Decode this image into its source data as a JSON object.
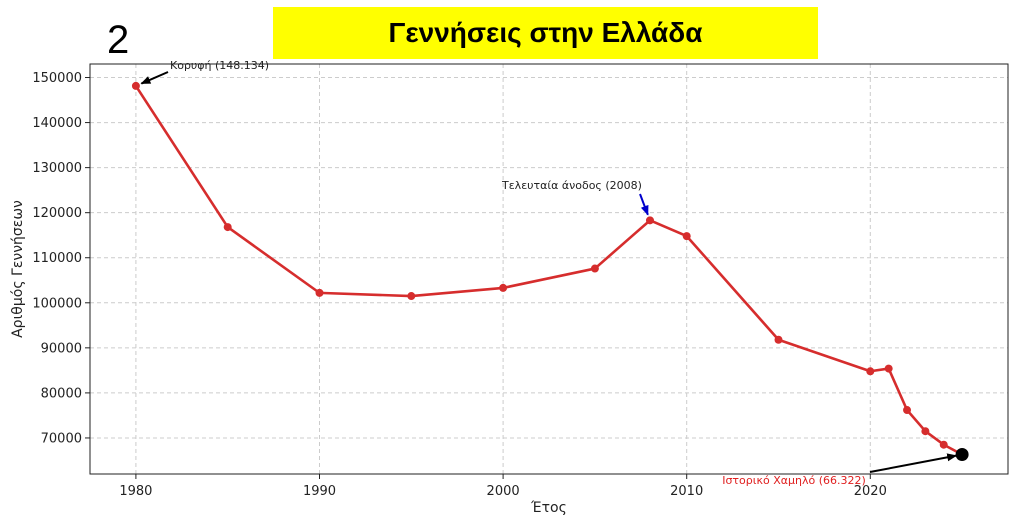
{
  "badge": "2",
  "chart_data": {
    "type": "line",
    "title": "Γεννήσεις στην Ελλάδα",
    "xlabel": "Έτος",
    "ylabel": "Αριθμός Γεννήσεων",
    "xlim": [
      1977.5,
      2027.5
    ],
    "ylim": [
      62000,
      153000
    ],
    "xticks": [
      1980,
      1990,
      2000,
      2010,
      2020
    ],
    "yticks": [
      70000,
      80000,
      90000,
      100000,
      110000,
      120000,
      130000,
      140000,
      150000
    ],
    "grid": true,
    "series": [
      {
        "color": "#d62d2d",
        "x": [
          1980,
          1985,
          1990,
          1995,
          2000,
          2005,
          2008,
          2010,
          2015,
          2020,
          2021,
          2022,
          2023,
          2024,
          2025
        ],
        "y": [
          148134,
          116800,
          102200,
          101500,
          103300,
          107600,
          118300,
          114800,
          91800,
          84800,
          85400,
          76200,
          71500,
          68500,
          66322
        ]
      }
    ],
    "annotations": [
      {
        "text": "Κορυφή (148.134)",
        "x": 1980,
        "y": 148134,
        "color": "#222222",
        "arrow_color": "#000000"
      },
      {
        "text": "Τελευταία άνοδος (2008)",
        "x": 2008,
        "y": 118300,
        "color": "#222222",
        "arrow_color": "#0000cc"
      },
      {
        "text": "Ιστορικό Χαμηλό (66.322)",
        "x": 2025,
        "y": 66322,
        "color": "#e02020",
        "arrow_color": "#000000"
      }
    ],
    "highlight_point": {
      "x": 2025,
      "y": 66322,
      "color": "#000000"
    }
  }
}
